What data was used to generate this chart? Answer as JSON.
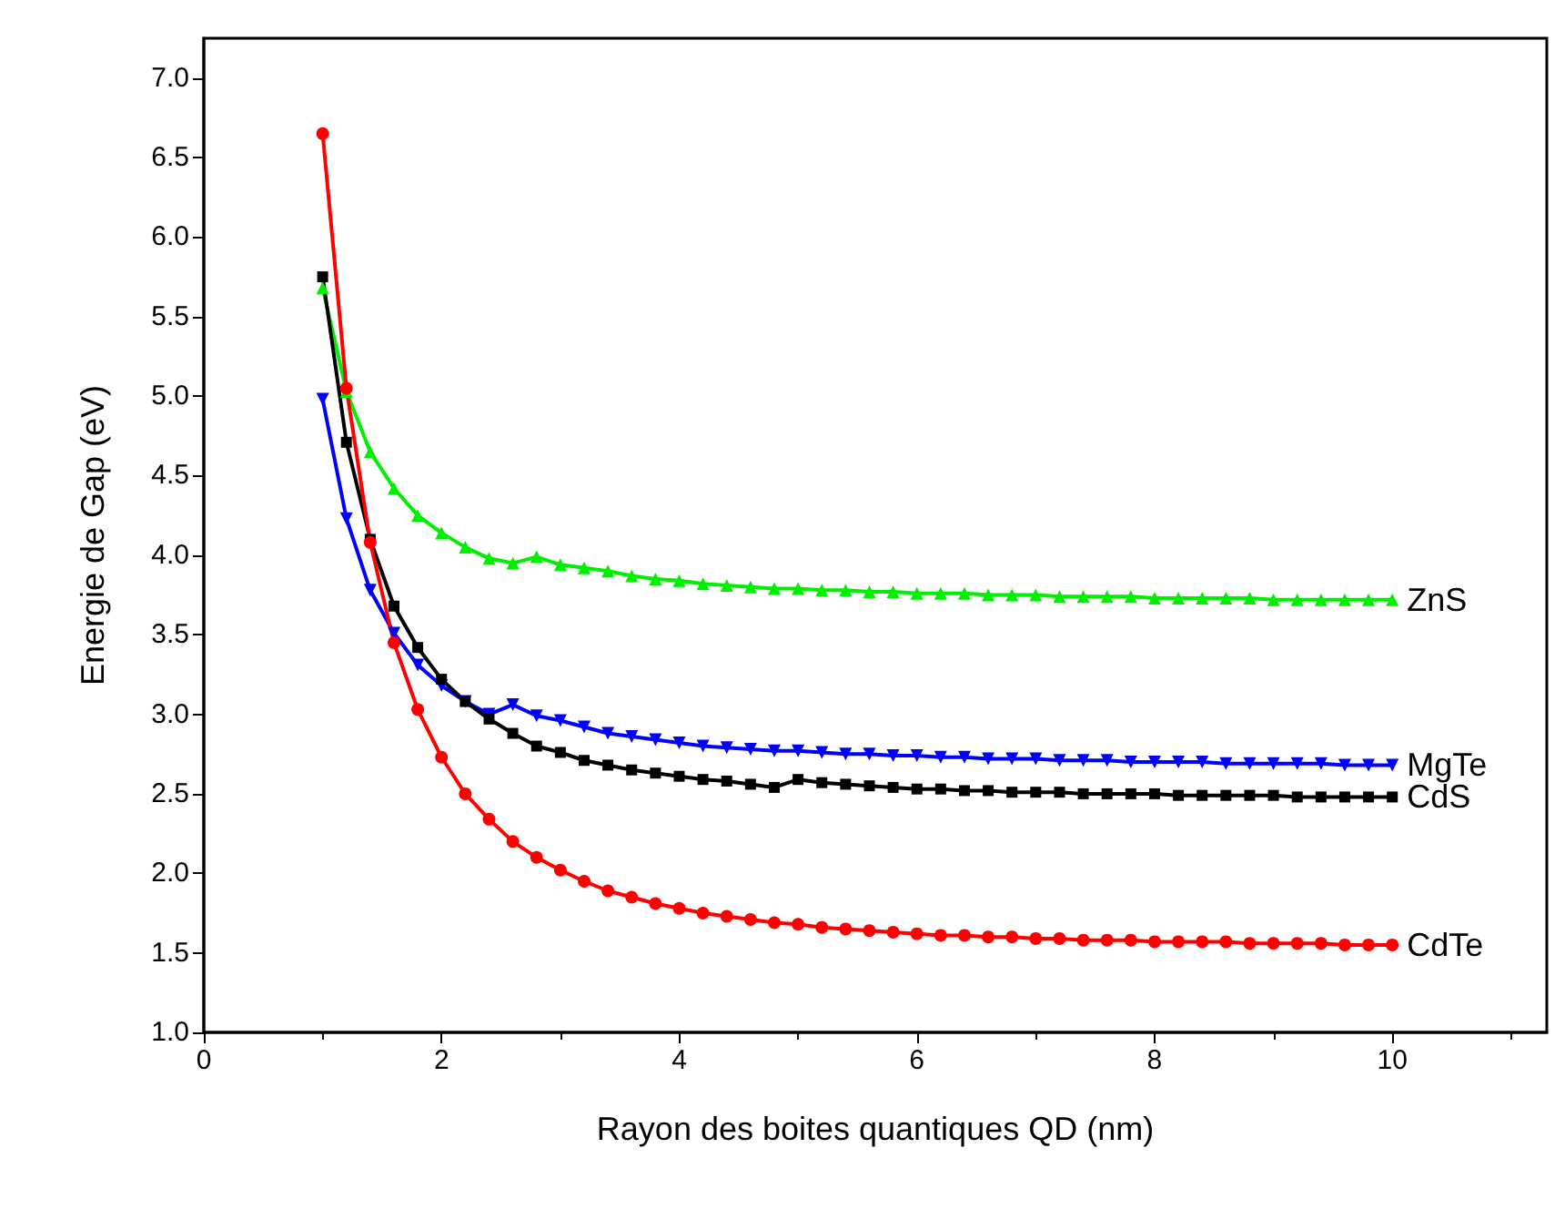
{
  "chart_data": {
    "type": "line",
    "xlabel": "Rayon des boites quantiques QD (nm)",
    "ylabel": "Energie de Gap (eV)",
    "x": [
      1,
      1.2,
      1.4,
      1.6,
      1.8,
      2,
      2.2,
      2.4,
      2.6,
      2.8,
      3,
      3.2,
      3.4,
      3.6,
      3.8,
      4,
      4.2,
      4.4,
      4.6,
      4.8,
      5,
      5.2,
      5.4,
      5.6,
      5.8,
      6,
      6.2,
      6.4,
      6.6,
      6.8,
      7,
      7.2,
      7.4,
      7.6,
      7.8,
      8,
      8.2,
      8.4,
      8.6,
      8.8,
      9,
      9.2,
      9.4,
      9.6,
      9.8,
      10
    ],
    "xlim": [
      0,
      11.3
    ],
    "xticks": [
      0,
      2,
      4,
      6,
      8,
      10
    ],
    "ylim": [
      1,
      7.25
    ],
    "yticks": [
      {
        "value": 1,
        "label": "1.0"
      },
      {
        "value": 1.5,
        "label": "1.5"
      },
      {
        "value": 2,
        "label": "2.0"
      },
      {
        "value": 2.5,
        "label": "2.5"
      },
      {
        "value": 3,
        "label": "3.0"
      },
      {
        "value": 3.5,
        "label": "3.5"
      },
      {
        "value": 4,
        "label": "4.0"
      },
      {
        "value": 4.5,
        "label": "4.5"
      },
      {
        "value": 5,
        "label": "5.0"
      },
      {
        "value": 5.5,
        "label": "5.5"
      },
      {
        "value": 6,
        "label": "6.0"
      },
      {
        "value": 6.5,
        "label": "6.5"
      },
      {
        "value": 7,
        "label": "7.0"
      }
    ],
    "grid": false,
    "legend": false,
    "series": [
      {
        "name": "ZnS",
        "color": "#00ee00",
        "marker": "triangle",
        "values": [
          5.68,
          5.03,
          4.65,
          4.42,
          4.25,
          4.14,
          4.05,
          3.98,
          3.95,
          3.99,
          3.94,
          3.92,
          3.9,
          3.87,
          3.85,
          3.84,
          3.82,
          3.81,
          3.8,
          3.79,
          3.79,
          3.78,
          3.78,
          3.77,
          3.77,
          3.76,
          3.76,
          3.76,
          3.75,
          3.75,
          3.75,
          3.74,
          3.74,
          3.74,
          3.74,
          3.73,
          3.73,
          3.73,
          3.73,
          3.73,
          3.72,
          3.72,
          3.72,
          3.72,
          3.72,
          3.72
        ]
      },
      {
        "name": "MgTe",
        "color": "#0000ff",
        "marker": "triangle-down",
        "values": [
          4.98,
          4.23,
          3.78,
          3.51,
          3.31,
          3.18,
          3.08,
          3.0,
          3.06,
          2.99,
          2.96,
          2.92,
          2.88,
          2.86,
          2.84,
          2.82,
          2.8,
          2.79,
          2.78,
          2.77,
          2.77,
          2.76,
          2.75,
          2.75,
          2.74,
          2.74,
          2.73,
          2.73,
          2.72,
          2.72,
          2.72,
          2.71,
          2.71,
          2.71,
          2.7,
          2.7,
          2.7,
          2.7,
          2.69,
          2.69,
          2.69,
          2.69,
          2.69,
          2.68,
          2.68,
          2.68
        ]
      },
      {
        "name": "CdS",
        "color": "#000000",
        "marker": "square",
        "values": [
          5.75,
          4.71,
          4.1,
          3.68,
          3.42,
          3.22,
          3.08,
          2.97,
          2.88,
          2.8,
          2.76,
          2.71,
          2.68,
          2.65,
          2.63,
          2.61,
          2.59,
          2.58,
          2.56,
          2.54,
          2.59,
          2.57,
          2.56,
          2.55,
          2.54,
          2.53,
          2.53,
          2.52,
          2.52,
          2.51,
          2.51,
          2.51,
          2.5,
          2.5,
          2.5,
          2.5,
          2.49,
          2.49,
          2.49,
          2.49,
          2.49,
          2.48,
          2.48,
          2.48,
          2.48,
          2.48
        ]
      },
      {
        "name": "CdTe",
        "color": "#ff0000",
        "marker": "circle",
        "values": [
          6.65,
          5.05,
          4.08,
          3.45,
          3.03,
          2.73,
          2.5,
          2.34,
          2.2,
          2.1,
          2.02,
          1.95,
          1.89,
          1.85,
          1.81,
          1.78,
          1.75,
          1.73,
          1.71,
          1.69,
          1.68,
          1.66,
          1.65,
          1.64,
          1.63,
          1.62,
          1.61,
          1.61,
          1.6,
          1.6,
          1.59,
          1.59,
          1.58,
          1.58,
          1.58,
          1.57,
          1.57,
          1.57,
          1.57,
          1.56,
          1.56,
          1.56,
          1.56,
          1.55,
          1.55,
          1.55
        ]
      }
    ]
  }
}
